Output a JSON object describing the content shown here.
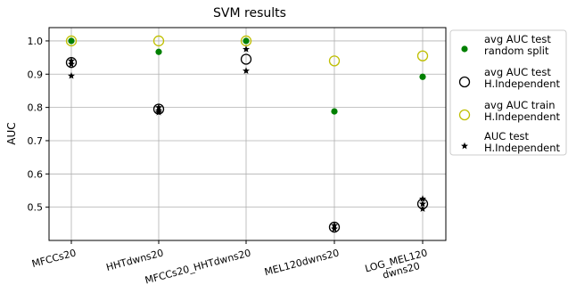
{
  "chart_data": {
    "type": "scatter",
    "title": "SVM results",
    "xlabel": "",
    "ylabel": "AUC",
    "categories": [
      "MFCCs20",
      "HHTdwns20",
      "MFCCs20_HHTdwns20",
      "MEL120dwns20",
      "LOG_MEL120\ndwns20"
    ],
    "ylim": [
      0.4,
      1.04
    ],
    "yticks": [
      0.5,
      0.6,
      0.7,
      0.8,
      0.9,
      1.0
    ],
    "ytick_labels": [
      "0.5",
      "0.6",
      "0.7",
      "0.8",
      "0.9",
      "1.0"
    ],
    "grid": true,
    "legend_position": "outside-right",
    "series": [
      {
        "name": "avg AUC test\nrandom split",
        "marker": "filled-circle",
        "color": "#008000",
        "values": [
          1.0,
          0.967,
          1.0,
          0.788,
          0.892
        ]
      },
      {
        "name": "avg AUC test\nH.Independent",
        "marker": "open-circle",
        "color": "#000000",
        "values": [
          0.935,
          0.795,
          0.945,
          0.44,
          0.51
        ]
      },
      {
        "name": "avg AUC train\nH.Independent",
        "marker": "open-circle",
        "color": "#bfbf00",
        "values": [
          1.0,
          1.0,
          1.0,
          0.94,
          0.955
        ]
      },
      {
        "name": "AUC test\nH.Independent",
        "marker": "star",
        "color": "#000000",
        "points": [
          [
            0,
            0.94
          ],
          [
            0,
            0.93
          ],
          [
            0,
            0.895
          ],
          [
            1,
            0.8
          ],
          [
            1,
            0.79
          ],
          [
            1,
            0.785
          ],
          [
            2,
            0.975
          ],
          [
            2,
            0.91
          ],
          [
            3,
            0.445
          ],
          [
            3,
            0.435
          ],
          [
            4,
            0.525
          ],
          [
            4,
            0.51
          ],
          [
            4,
            0.495
          ]
        ]
      }
    ]
  }
}
